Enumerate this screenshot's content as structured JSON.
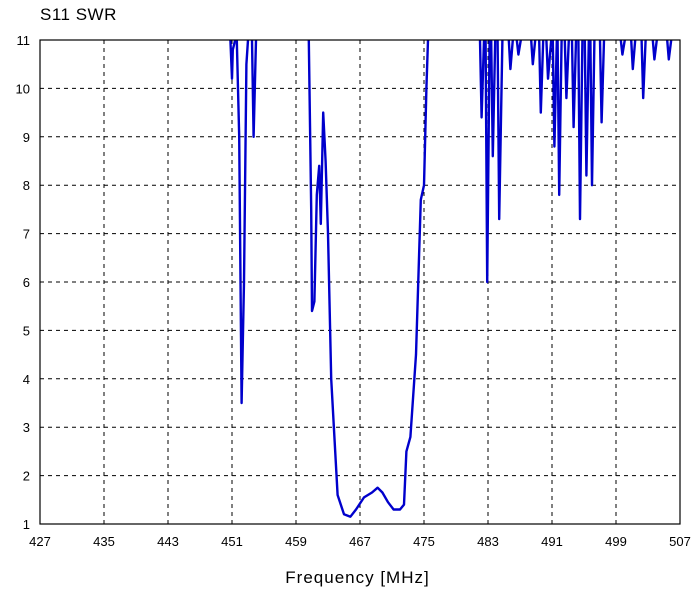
{
  "chart_data": {
    "type": "line",
    "title": "S11 SWR",
    "xlabel": "Frequency [MHz]",
    "ylabel": "",
    "xlim": [
      427,
      507
    ],
    "ylim": [
      1,
      11
    ],
    "x_ticks": [
      427,
      435,
      443,
      451,
      459,
      467,
      475,
      483,
      491,
      499,
      507
    ],
    "y_ticks": [
      1,
      2,
      3,
      4,
      5,
      6,
      7,
      8,
      9,
      10,
      11
    ],
    "grid": true,
    "series": [
      {
        "color": "#0000cc",
        "segments": [
          [
            [
              450.8,
              11
            ],
            [
              451.0,
              10.2
            ],
            [
              451.1,
              10.8
            ],
            [
              451.4,
              11
            ]
          ],
          [
            [
              451.6,
              11
            ],
            [
              451.9,
              9.0
            ],
            [
              452.2,
              3.5
            ],
            [
              452.5,
              6.0
            ],
            [
              452.8,
              10.5
            ],
            [
              453.0,
              11
            ]
          ],
          [
            [
              453.5,
              11
            ],
            [
              453.7,
              9.0
            ],
            [
              454.0,
              11
            ]
          ],
          [
            [
              460.6,
              11
            ],
            [
              460.9,
              7.5
            ],
            [
              461.0,
              5.4
            ],
            [
              461.3,
              5.6
            ],
            [
              461.6,
              7.8
            ],
            [
              461.9,
              8.4
            ],
            [
              462.1,
              7.2
            ],
            [
              462.4,
              9.5
            ],
            [
              462.7,
              8.5
            ],
            [
              463.0,
              7.0
            ],
            [
              463.4,
              4.0
            ],
            [
              464.2,
              1.6
            ],
            [
              465.0,
              1.2
            ],
            [
              465.8,
              1.15
            ],
            [
              466.5,
              1.3
            ],
            [
              467.5,
              1.55
            ],
            [
              468.5,
              1.65
            ],
            [
              469.2,
              1.75
            ],
            [
              469.8,
              1.65
            ],
            [
              470.5,
              1.45
            ],
            [
              471.2,
              1.3
            ],
            [
              472.0,
              1.3
            ],
            [
              472.5,
              1.4
            ],
            [
              472.8,
              2.5
            ],
            [
              473.3,
              2.8
            ],
            [
              474.0,
              4.5
            ],
            [
              474.6,
              7.7
            ],
            [
              475.0,
              8.0
            ],
            [
              475.3,
              10.0
            ],
            [
              475.5,
              11
            ]
          ],
          [
            [
              482.0,
              11
            ],
            [
              482.2,
              9.4
            ],
            [
              482.5,
              11
            ]
          ],
          [
            [
              482.7,
              11
            ],
            [
              482.9,
              6.0
            ],
            [
              483.2,
              11
            ]
          ],
          [
            [
              483.4,
              11
            ],
            [
              483.6,
              8.6
            ],
            [
              483.9,
              11
            ]
          ],
          [
            [
              484.2,
              11
            ],
            [
              484.4,
              7.3
            ],
            [
              484.8,
              11
            ]
          ],
          [
            [
              485.6,
              11
            ],
            [
              485.8,
              10.4
            ],
            [
              486.1,
              11
            ]
          ],
          [
            [
              486.6,
              11
            ],
            [
              486.8,
              10.7
            ],
            [
              487.1,
              11
            ]
          ],
          [
            [
              488.4,
              11
            ],
            [
              488.6,
              10.5
            ],
            [
              488.9,
              11
            ]
          ],
          [
            [
              489.4,
              11
            ],
            [
              489.6,
              9.5
            ],
            [
              489.9,
              11
            ]
          ],
          [
            [
              490.3,
              11
            ],
            [
              490.5,
              10.2
            ],
            [
              490.9,
              11
            ]
          ],
          [
            [
              491.1,
              11
            ],
            [
              491.3,
              8.8
            ],
            [
              491.6,
              11
            ]
          ],
          [
            [
              491.7,
              11
            ],
            [
              491.9,
              7.8
            ],
            [
              492.2,
              11
            ]
          ],
          [
            [
              492.6,
              11
            ],
            [
              492.8,
              9.8
            ],
            [
              493.1,
              11
            ]
          ],
          [
            [
              493.5,
              11
            ],
            [
              493.7,
              9.2
            ],
            [
              494.0,
              11
            ]
          ],
          [
            [
              494.3,
              11
            ],
            [
              494.5,
              7.3
            ],
            [
              494.8,
              11
            ]
          ],
          [
            [
              495.1,
              11
            ],
            [
              495.3,
              8.2
            ],
            [
              495.6,
              11
            ]
          ],
          [
            [
              495.8,
              11
            ],
            [
              496.0,
              8.0
            ],
            [
              496.3,
              11
            ]
          ],
          [
            [
              497.0,
              11
            ],
            [
              497.2,
              9.3
            ],
            [
              497.5,
              11
            ]
          ],
          [
            [
              499.6,
              11
            ],
            [
              499.8,
              10.7
            ],
            [
              500.1,
              11
            ]
          ],
          [
            [
              500.9,
              11
            ],
            [
              501.1,
              10.4
            ],
            [
              501.4,
              11
            ]
          ],
          [
            [
              502.2,
              11
            ],
            [
              502.4,
              9.8
            ],
            [
              502.7,
              11
            ]
          ],
          [
            [
              503.6,
              11
            ],
            [
              503.8,
              10.6
            ],
            [
              504.1,
              11
            ]
          ],
          [
            [
              505.4,
              11
            ],
            [
              505.6,
              10.6
            ],
            [
              505.9,
              11
            ]
          ]
        ]
      }
    ]
  }
}
